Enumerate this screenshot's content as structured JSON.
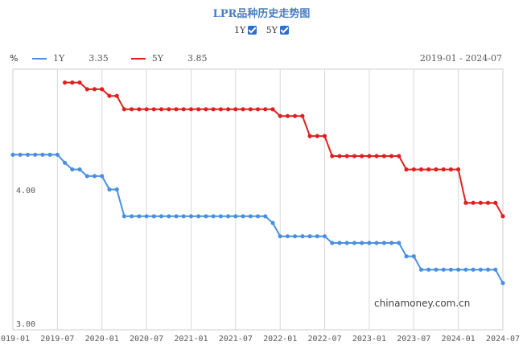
{
  "title": "LPR品种历史走势图",
  "toggles": [
    {
      "label": "1Y",
      "checked": true
    },
    {
      "label": "5Y",
      "checked": true
    }
  ],
  "unit": "%",
  "date_range": "2019-01 - 2024-07",
  "watermark": "chinamoney.com.cn",
  "colors": {
    "1Y": "#4a90e2",
    "5Y": "#e02020",
    "grid": "#d9d9d9"
  },
  "chart_data": {
    "type": "line",
    "title": "LPR品种历史走势图",
    "xlabel": "",
    "ylabel": "%",
    "ylim": [
      3.0,
      4.95
    ],
    "yticks": [
      {
        "value": 4.0,
        "label": "4.00"
      },
      {
        "value": 3.0,
        "label": "3.00"
      }
    ],
    "xlim": [
      "2019-01",
      "2024-07"
    ],
    "xticks": [
      "2019-01",
      "2019-07",
      "2020-01",
      "2020-07",
      "2021-01",
      "2021-07",
      "2022-01",
      "2022-07",
      "2023-01",
      "2023-07",
      "2024-01",
      "2024-07"
    ],
    "grid": true,
    "legend_position": "top-left",
    "series": [
      {
        "name": "1Y",
        "latest": "3.35",
        "steps": [
          {
            "from": "2019-01",
            "to": "2019-07",
            "value": 4.31
          },
          {
            "from": "2019-08",
            "to": "2019-08",
            "value": 4.25
          },
          {
            "from": "2019-09",
            "to": "2019-10",
            "value": 4.2
          },
          {
            "from": "2019-11",
            "to": "2020-01",
            "value": 4.15
          },
          {
            "from": "2020-02",
            "to": "2020-03",
            "value": 4.05
          },
          {
            "from": "2020-04",
            "to": "2021-11",
            "value": 3.85
          },
          {
            "from": "2021-12",
            "to": "2021-12",
            "value": 3.8
          },
          {
            "from": "2022-01",
            "to": "2022-07",
            "value": 3.7
          },
          {
            "from": "2022-08",
            "to": "2023-05",
            "value": 3.65
          },
          {
            "from": "2023-06",
            "to": "2023-07",
            "value": 3.55
          },
          {
            "from": "2023-08",
            "to": "2024-06",
            "value": 3.45
          },
          {
            "from": "2024-07",
            "to": "2024-07",
            "value": 3.35
          }
        ]
      },
      {
        "name": "5Y",
        "latest": "3.85",
        "steps": [
          {
            "from": "2019-08",
            "to": "2019-10",
            "value": 4.85
          },
          {
            "from": "2019-11",
            "to": "2020-01",
            "value": 4.8
          },
          {
            "from": "2020-02",
            "to": "2020-03",
            "value": 4.75
          },
          {
            "from": "2020-04",
            "to": "2021-12",
            "value": 4.65
          },
          {
            "from": "2022-01",
            "to": "2022-04",
            "value": 4.6
          },
          {
            "from": "2022-05",
            "to": "2022-07",
            "value": 4.45
          },
          {
            "from": "2022-08",
            "to": "2023-05",
            "value": 4.3
          },
          {
            "from": "2023-06",
            "to": "2024-01",
            "value": 4.2
          },
          {
            "from": "2024-02",
            "to": "2024-06",
            "value": 3.95
          },
          {
            "from": "2024-07",
            "to": "2024-07",
            "value": 3.85
          }
        ]
      }
    ]
  }
}
